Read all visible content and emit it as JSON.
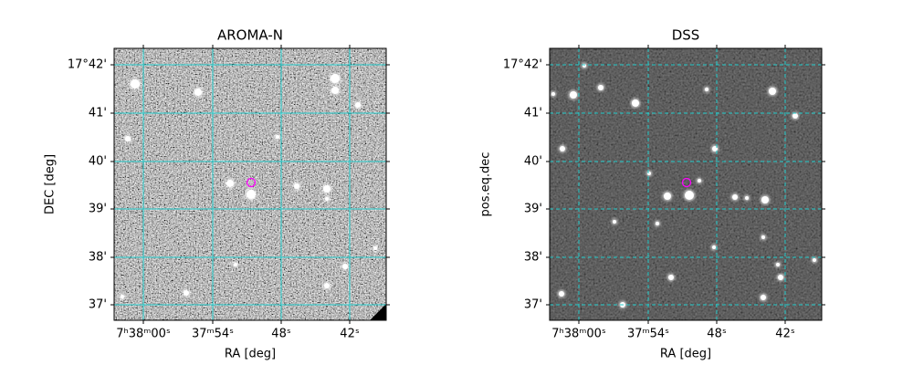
{
  "panels": [
    {
      "title": "AROMA-N",
      "xlabel": "RA [deg]",
      "ylabel": "DEC [deg]",
      "xticks": [
        "7ʰ38ᵐ00ˢ",
        "37ᵐ54ˢ",
        "48ˢ",
        "42ˢ"
      ],
      "yticks": [
        "17°42'",
        "41'",
        "40'",
        "39'",
        "38'",
        "37'"
      ]
    },
    {
      "title": "DSS",
      "xlabel": "RA [deg]",
      "ylabel": "pos.eq.dec",
      "xticks": [
        "7ʰ38ᵐ00ˢ",
        "37ᵐ54ˢ",
        "48ˢ",
        "42ˢ"
      ],
      "yticks": [
        "17°42'",
        "41'",
        "40'",
        "39'",
        "38'",
        "37'"
      ]
    }
  ]
}
